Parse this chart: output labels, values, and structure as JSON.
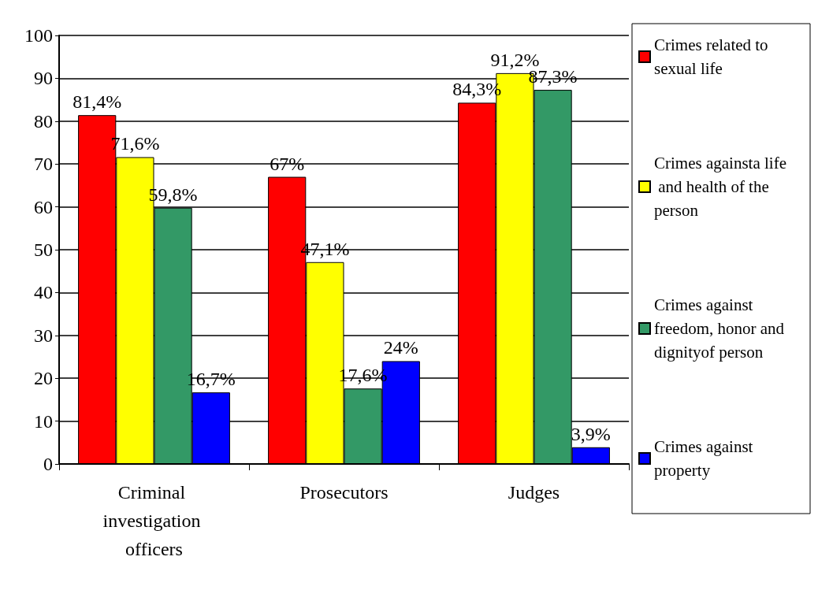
{
  "chart_data": {
    "type": "bar",
    "categories": [
      "Criminal investigation officers",
      "Prosecutors",
      "Judges"
    ],
    "series": [
      {
        "name": "Crimes related to sexual life",
        "color": "#ff0000",
        "values": [
          81.4,
          67,
          84.3
        ],
        "value_labels": [
          "81,4%",
          "67%",
          "84,3%"
        ]
      },
      {
        "name": "Crimes againsta life and health of the person",
        "color": "#ffff00",
        "values": [
          71.6,
          47.1,
          91.2
        ],
        "value_labels": [
          "71,6%",
          "47,1%",
          "91,2%"
        ]
      },
      {
        "name": "Crimes against freedom, honor and dignityof person",
        "color": "#339966",
        "values": [
          59.8,
          17.6,
          87.3
        ],
        "value_labels": [
          "59,8%",
          "17,6%",
          "87,3%"
        ]
      },
      {
        "name": "Crimes against property",
        "color": "#0000ff",
        "values": [
          16.7,
          24,
          3.9
        ],
        "value_labels": [
          "16,7%",
          "24%",
          "3,9%"
        ]
      }
    ],
    "ylim": [
      0,
      100
    ],
    "yticks": [
      0,
      10,
      20,
      30,
      40,
      50,
      60,
      70,
      80,
      90,
      100
    ],
    "grid": "y",
    "legend": "right"
  }
}
